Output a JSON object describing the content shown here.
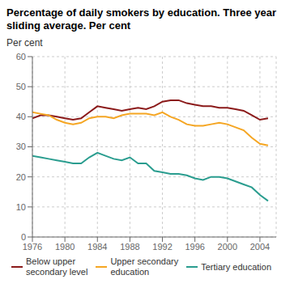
{
  "chart_data": {
    "type": "line",
    "title": "Percentage of daily smokers by education. Three year\nsliding average. Per cent",
    "ylabel": "Per cent",
    "x": [
      1976,
      1977,
      1978,
      1979,
      1980,
      1981,
      1982,
      1983,
      1984,
      1985,
      1986,
      1987,
      1988,
      1989,
      1990,
      1991,
      1992,
      1993,
      1994,
      1995,
      1996,
      1997,
      1998,
      1999,
      2000,
      2001,
      2002,
      2003,
      2004,
      2005
    ],
    "series": [
      {
        "name": "Below upper\nsecondary level",
        "color": "#8b1a1a",
        "values": [
          39.5,
          40.5,
          40.5,
          40.0,
          39.5,
          39.0,
          39.5,
          41.5,
          43.5,
          43.0,
          42.5,
          42.0,
          42.5,
          43.0,
          42.5,
          43.5,
          45.0,
          45.5,
          45.5,
          44.5,
          44.0,
          43.5,
          43.5,
          43.0,
          43.0,
          42.5,
          42.0,
          40.5,
          39.0,
          39.5
        ]
      },
      {
        "name": "Upper secondary\neducation",
        "color": "#f5a623",
        "values": [
          41.5,
          41.0,
          40.5,
          39.0,
          38.0,
          37.5,
          38.0,
          39.5,
          40.0,
          40.0,
          39.5,
          40.5,
          41.0,
          41.0,
          41.0,
          40.5,
          41.5,
          40.0,
          39.0,
          37.5,
          37.0,
          37.0,
          37.5,
          38.0,
          37.5,
          36.5,
          35.5,
          33.0,
          31.0,
          30.5
        ]
      },
      {
        "name": "Tertiary education",
        "color": "#2a9d8f",
        "values": [
          27.0,
          26.5,
          26.0,
          25.5,
          25.0,
          24.5,
          24.5,
          26.5,
          28.0,
          27.0,
          26.0,
          25.5,
          26.5,
          24.5,
          24.5,
          22.0,
          21.5,
          21.0,
          21.0,
          20.5,
          19.5,
          19.0,
          20.0,
          20.0,
          19.5,
          18.5,
          17.5,
          16.5,
          14.0,
          12.0
        ]
      }
    ],
    "xlim": [
      1976,
      2006
    ],
    "ylim": [
      0,
      60
    ],
    "xticks": [
      1976,
      1980,
      1984,
      1988,
      1992,
      1996,
      2000,
      2004
    ],
    "yticks": [
      0,
      10,
      20,
      30,
      40,
      50,
      60
    ],
    "grid": true,
    "legend": "bottom"
  }
}
